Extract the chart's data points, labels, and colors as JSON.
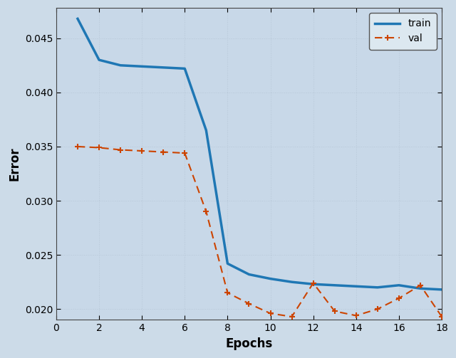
{
  "train_x": [
    1,
    2,
    3,
    4,
    5,
    6,
    7,
    8,
    9,
    10,
    11,
    12,
    13,
    14,
    15,
    16,
    17,
    18
  ],
  "train_y": [
    0.0468,
    0.043,
    0.0425,
    0.0424,
    0.0423,
    0.0422,
    0.0365,
    0.0242,
    0.0232,
    0.0228,
    0.0225,
    0.0223,
    0.0222,
    0.0221,
    0.022,
    0.0222,
    0.0219,
    0.0218
  ],
  "val_x": [
    1,
    2,
    3,
    4,
    5,
    6,
    7,
    8,
    9,
    10,
    11,
    12,
    13,
    14,
    15,
    16,
    17,
    18
  ],
  "val_y": [
    0.035,
    0.0349,
    0.0347,
    0.0346,
    0.0345,
    0.0344,
    0.029,
    0.0215,
    0.0205,
    0.0196,
    0.0193,
    0.0224,
    0.0198,
    0.0194,
    0.02,
    0.021,
    0.0222,
    0.0193
  ],
  "train_color": "#1f77b4",
  "val_color": "#cc4400",
  "xlabel": "Epochs",
  "ylabel": "Error",
  "xlim": [
    0,
    18
  ],
  "ylim_min": 0.019,
  "ylim_max": 0.0478,
  "yticks": [
    0.02,
    0.025,
    0.03,
    0.035,
    0.04,
    0.045
  ],
  "xticks": [
    0,
    2,
    4,
    6,
    8,
    10,
    12,
    14,
    16,
    18
  ],
  "background_color": "#ccdbe8",
  "plot_bg_color": "#c8d8e8",
  "grid_color": "#b0c4d4",
  "legend_labels": [
    "train",
    "val"
  ],
  "axis_fontsize": 12,
  "tick_fontsize": 10
}
